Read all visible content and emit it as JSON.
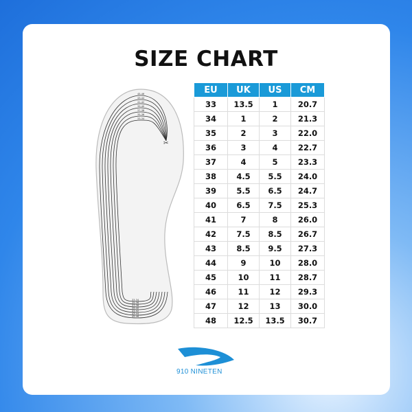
{
  "title": "SIZE CHART",
  "table": {
    "headers": [
      "EU",
      "UK",
      "US",
      "CM"
    ],
    "rows": [
      [
        "33",
        "13.5",
        "1",
        "20.7"
      ],
      [
        "34",
        "1",
        "2",
        "21.3"
      ],
      [
        "35",
        "2",
        "3",
        "22.0"
      ],
      [
        "36",
        "3",
        "4",
        "22.7"
      ],
      [
        "37",
        "4",
        "5",
        "23.3"
      ],
      [
        "38",
        "4.5",
        "5.5",
        "24.0"
      ],
      [
        "39",
        "5.5",
        "6.5",
        "24.7"
      ],
      [
        "40",
        "6.5",
        "7.5",
        "25.3"
      ],
      [
        "41",
        "7",
        "8",
        "26.0"
      ],
      [
        "42",
        "7.5",
        "8.5",
        "26.7"
      ],
      [
        "43",
        "8.5",
        "9.5",
        "27.3"
      ],
      [
        "44",
        "9",
        "10",
        "28.0"
      ],
      [
        "45",
        "10",
        "11",
        "28.7"
      ],
      [
        "46",
        "11",
        "12",
        "29.3"
      ],
      [
        "47",
        "12",
        "13",
        "30.0"
      ],
      [
        "48",
        "12.5",
        "13.5",
        "30.7"
      ]
    ],
    "header_color": "#1a9ad8"
  },
  "insole": {
    "size_lines": [
      "45-46",
      "43-44",
      "41-42",
      "39-40",
      "37-38",
      "35-36",
      "33-34"
    ],
    "icon": "scissors-icon"
  },
  "brand": {
    "name": "910 NINETEN",
    "color": "#1d8fd6"
  }
}
